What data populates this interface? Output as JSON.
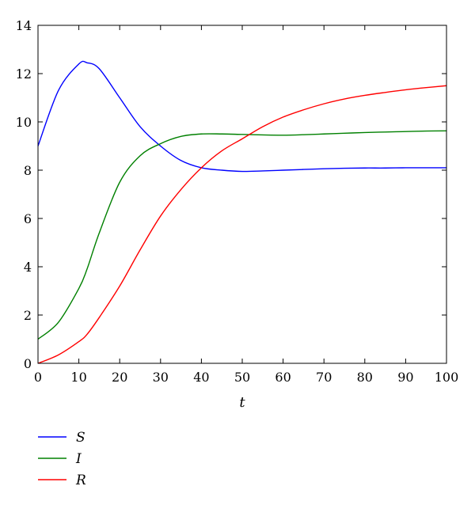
{
  "chart_data": {
    "type": "line",
    "title": "",
    "xlabel": "t",
    "ylabel": "",
    "xlim": [
      0,
      100
    ],
    "ylim": [
      0,
      14
    ],
    "x_ticks": [
      0,
      10,
      20,
      30,
      40,
      50,
      60,
      70,
      80,
      90,
      100
    ],
    "y_ticks": [
      0,
      2,
      4,
      6,
      8,
      10,
      12,
      14
    ],
    "grid": false,
    "legend": "below",
    "x": [
      0,
      5,
      10,
      12,
      15,
      20,
      25,
      30,
      35,
      40,
      45,
      50,
      55,
      60,
      65,
      70,
      75,
      80,
      85,
      90,
      95,
      100
    ],
    "series": [
      {
        "name": "S",
        "color": "#0000ff",
        "values": [
          9.0,
          11.3,
          12.4,
          12.45,
          12.2,
          11.0,
          9.8,
          9.0,
          8.4,
          8.1,
          8.0,
          7.95,
          7.97,
          8.0,
          8.03,
          8.06,
          8.08,
          8.09,
          8.09,
          8.1,
          8.1,
          8.1
        ]
      },
      {
        "name": "I",
        "color": "#008000",
        "values": [
          1.0,
          1.7,
          3.1,
          3.9,
          5.4,
          7.5,
          8.6,
          9.1,
          9.4,
          9.5,
          9.5,
          9.48,
          9.46,
          9.45,
          9.47,
          9.5,
          9.53,
          9.56,
          9.58,
          9.6,
          9.62,
          9.63
        ]
      },
      {
        "name": "R",
        "color": "#ff0000",
        "values": [
          0.0,
          0.35,
          0.9,
          1.2,
          1.9,
          3.2,
          4.7,
          6.1,
          7.2,
          8.1,
          8.8,
          9.3,
          9.8,
          10.2,
          10.5,
          10.75,
          10.95,
          11.1,
          11.22,
          11.33,
          11.42,
          11.5
        ]
      }
    ]
  }
}
